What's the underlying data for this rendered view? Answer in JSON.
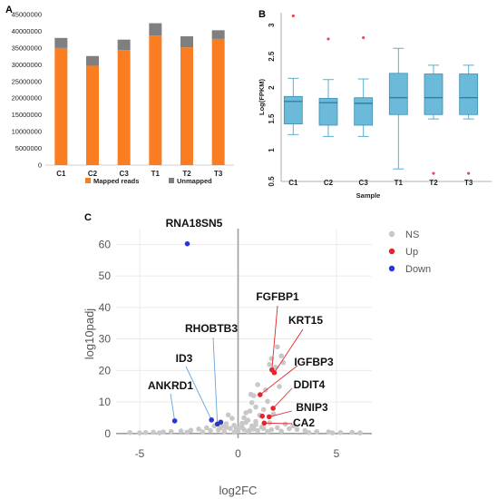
{
  "chart_data": [
    {
      "panel": "A",
      "type": "bar",
      "stacked": true,
      "categories": [
        "C1",
        "C2",
        "C3",
        "T1",
        "T2",
        "T3"
      ],
      "series": [
        {
          "name": "Mapped reads",
          "color": "#fb7d22",
          "values": [
            35000000,
            29700000,
            34400000,
            38700000,
            35200000,
            37700000
          ]
        },
        {
          "name": "Unmapped",
          "color": "#7f7f7f",
          "values": [
            3000000,
            2900000,
            3100000,
            3700000,
            3300000,
            2600000
          ]
        }
      ],
      "ylim": [
        0,
        45000000
      ],
      "yticks": [
        "0",
        "5000000",
        "10000000",
        "15000000",
        "20000000",
        "25000000",
        "30000000",
        "35000000",
        "40000000",
        "45000000"
      ],
      "legend_position": "bottom"
    },
    {
      "panel": "B",
      "type": "box",
      "categories": [
        "C1",
        "C2",
        "C3",
        "T1",
        "T2",
        "T3"
      ],
      "boxes": [
        {
          "min": 1.25,
          "q1": 1.42,
          "median": 1.78,
          "q3": 1.86,
          "max": 2.15,
          "outliers": [
            3.15
          ]
        },
        {
          "min": 1.22,
          "q1": 1.4,
          "median": 1.76,
          "q3": 1.83,
          "max": 2.13,
          "outliers": [
            2.78
          ]
        },
        {
          "min": 1.22,
          "q1": 1.4,
          "median": 1.75,
          "q3": 1.84,
          "max": 2.14,
          "outliers": [
            2.8
          ]
        },
        {
          "min": 0.7,
          "q1": 1.57,
          "median": 1.84,
          "q3": 2.23,
          "max": 2.63,
          "outliers": []
        },
        {
          "min": 1.5,
          "q1": 1.57,
          "median": 1.84,
          "q3": 2.22,
          "max": 2.36,
          "outliers": [
            0.63
          ]
        },
        {
          "min": 1.5,
          "q1": 1.57,
          "median": 1.84,
          "q3": 2.22,
          "max": 2.36,
          "outliers": [
            0.63
          ]
        }
      ],
      "xlabel": "Sample",
      "ylabel": "Log(FPKM)",
      "ylim": [
        0.5,
        3.2
      ],
      "yticks": [
        "0.5",
        "1",
        "1.5",
        "2",
        "2.5",
        "3"
      ],
      "box_color": "#6cbad9",
      "outlier_color": "#e0505a"
    },
    {
      "panel": "C",
      "type": "scatter",
      "xlabel": "log2FC",
      "ylabel": "log10padj",
      "xlim": [
        -6.2,
        6.8
      ],
      "ylim": [
        -1.5,
        65
      ],
      "xticks": [
        -5,
        0,
        5
      ],
      "yticks": [
        0,
        10,
        20,
        30,
        40,
        50,
        60
      ],
      "legend": [
        {
          "name": "NS",
          "color": "#c8c8c8"
        },
        {
          "name": "Up",
          "color": "#e3262b"
        },
        {
          "name": "Down",
          "color": "#2a36d6"
        }
      ],
      "points_up": [
        [
          1.72,
          20.2
        ],
        [
          1.84,
          19.3
        ],
        [
          1.12,
          12.3
        ],
        [
          1.78,
          8.0
        ],
        [
          1.23,
          5.5
        ],
        [
          1.58,
          5.3
        ],
        [
          1.33,
          3.3
        ]
      ],
      "points_down": [
        [
          -2.58,
          60.2
        ],
        [
          -3.22,
          4.0
        ],
        [
          -1.35,
          4.3
        ],
        [
          -1.05,
          3.0
        ],
        [
          -0.88,
          3.6
        ]
      ],
      "points_ns": [
        [
          2.0,
          27.5
        ],
        [
          1.7,
          23.8
        ],
        [
          2.2,
          24.6
        ],
        [
          1.6,
          21.9
        ],
        [
          1.9,
          21.0
        ],
        [
          2.3,
          22.5
        ],
        [
          0.8,
          12.0
        ],
        [
          0.65,
          12.4
        ],
        [
          1.4,
          13.8
        ],
        [
          2.1,
          14.9
        ],
        [
          1.0,
          15.5
        ],
        [
          0.7,
          9.8
        ],
        [
          1.5,
          10.2
        ],
        [
          0.9,
          8.4
        ],
        [
          1.3,
          7.6
        ],
        [
          0.6,
          7.1
        ],
        [
          1.8,
          6.2
        ],
        [
          0.4,
          6.6
        ],
        [
          1.1,
          5.8
        ],
        [
          0.3,
          5.0
        ],
        [
          0.5,
          4.2
        ],
        [
          0.9,
          3.8
        ],
        [
          1.6,
          3.4
        ],
        [
          0.2,
          3.2
        ],
        [
          -0.3,
          4.8
        ],
        [
          -0.5,
          5.9
        ],
        [
          -0.2,
          2.6
        ],
        [
          -0.6,
          3.1
        ],
        [
          -0.8,
          2.2
        ],
        [
          0.7,
          2.4
        ],
        [
          1.2,
          2.0
        ],
        [
          2.0,
          1.8
        ],
        [
          2.6,
          1.5
        ],
        [
          3.0,
          1.3
        ],
        [
          3.4,
          0.9
        ],
        [
          4.0,
          0.6
        ],
        [
          4.6,
          0.5
        ],
        [
          5.2,
          0.3
        ],
        [
          5.8,
          0.4
        ],
        [
          6.2,
          0.2
        ],
        [
          2.4,
          3.0
        ],
        [
          2.8,
          2.4
        ],
        [
          -1.6,
          1.8
        ],
        [
          -2.0,
          1.4
        ],
        [
          -2.4,
          1.0
        ],
        [
          -2.9,
          0.8
        ],
        [
          -3.4,
          0.6
        ],
        [
          -3.8,
          0.5
        ],
        [
          -4.3,
          0.4
        ],
        [
          -4.7,
          0.3
        ],
        [
          -5.0,
          0.2
        ],
        [
          -5.5,
          0.3
        ],
        [
          -1.2,
          2.4
        ],
        [
          -0.4,
          1.6
        ],
        [
          0.1,
          1.9
        ],
        [
          0.0,
          0.8
        ],
        [
          -0.7,
          0.6
        ],
        [
          0.5,
          0.7
        ],
        [
          1.0,
          0.9
        ],
        [
          1.5,
          0.6
        ],
        [
          -1.0,
          1.1
        ],
        [
          -1.8,
          0.5
        ],
        [
          0.3,
          1.2
        ],
        [
          0.8,
          1.4
        ],
        [
          -0.2,
          0.4
        ],
        [
          2.2,
          0.7
        ],
        [
          -2.6,
          0.4
        ],
        [
          3.6,
          0.3
        ],
        [
          -4.0,
          0.2
        ],
        [
          4.8,
          0.2
        ],
        [
          -0.9,
          1.7
        ],
        [
          0.6,
          1.1
        ],
        [
          1.7,
          1.2
        ],
        [
          -1.4,
          0.9
        ],
        [
          0.2,
          2.3
        ],
        [
          0.4,
          3.5
        ],
        [
          -0.1,
          1.5
        ],
        [
          1.3,
          1.6
        ],
        [
          -0.6,
          2.0
        ],
        [
          0.9,
          2.8
        ]
      ],
      "labels": [
        {
          "text": "RNA18SN5",
          "target": [
            -2.58,
            60.2
          ],
          "line": false
        },
        {
          "text": "RHOBTB3",
          "target": [
            -1.05,
            3.0
          ],
          "line": true
        },
        {
          "text": "ID3",
          "target": [
            -1.35,
            4.3
          ],
          "line": true
        },
        {
          "text": "ANKRD1",
          "target": [
            -3.22,
            4.0
          ],
          "line": true
        },
        {
          "text": "FGFBP1",
          "target": [
            1.72,
            20.2
          ],
          "line": true
        },
        {
          "text": "KRT15",
          "target": [
            1.84,
            19.3
          ],
          "line": true
        },
        {
          "text": "IGFBP3",
          "target": [
            1.12,
            12.3
          ],
          "line": true
        },
        {
          "text": "DDIT4",
          "target": [
            1.78,
            8.0
          ],
          "line": true
        },
        {
          "text": "BNIP3",
          "target": [
            1.58,
            5.3
          ],
          "line": true
        },
        {
          "text": "CA2",
          "target": [
            1.33,
            3.3
          ],
          "line": true
        }
      ]
    }
  ]
}
